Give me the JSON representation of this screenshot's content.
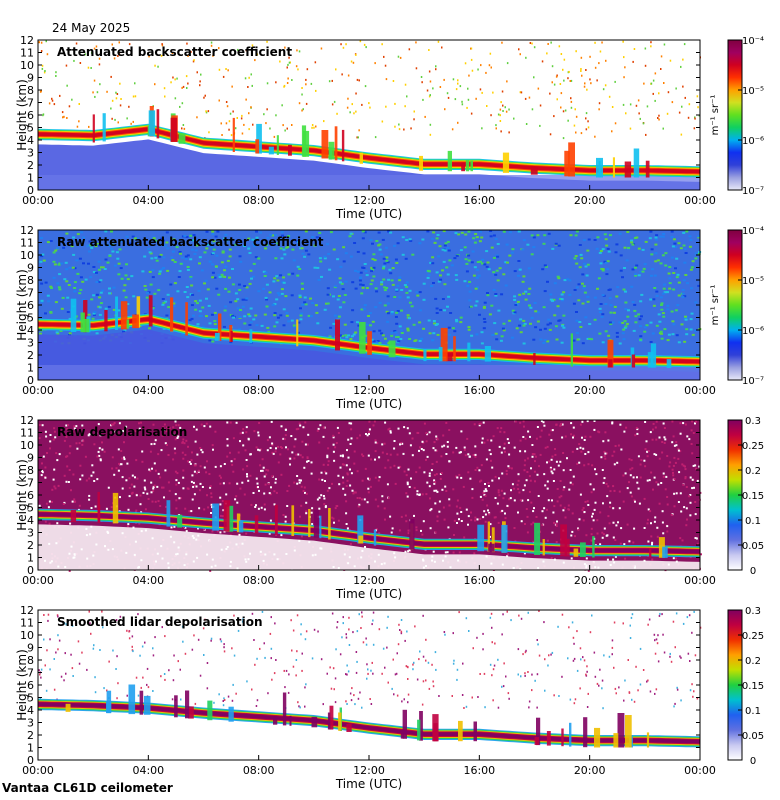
{
  "date_label": "24 May 2025",
  "footer": "Vantaa CL61D ceilometer",
  "colors": {
    "backscatter_scale": [
      "#e8e8f8",
      "#9aa0e0",
      "#3040d8",
      "#1030f0",
      "#00b0f0",
      "#10d060",
      "#60e020",
      "#d0e020",
      "#ffa000",
      "#ff3000",
      "#d00020",
      "#a00060",
      "#800040"
    ],
    "depol_scale": [
      "#ffffff",
      "#c8c8f0",
      "#6070e0",
      "#2060f0",
      "#00c0d0",
      "#20d040",
      "#c0e000",
      "#ffa000",
      "#f03000",
      "#c00040",
      "#800060"
    ]
  },
  "chart_data": [
    {
      "type": "heatmap",
      "title": "Attenuated backscatter coefficient",
      "xlabel": "Time (UTC)",
      "ylabel": "Height (km)",
      "x_ticks": [
        "00:00",
        "04:00",
        "08:00",
        "12:00",
        "16:00",
        "20:00",
        "00:00"
      ],
      "y_ticks": [
        "0",
        "1",
        "2",
        "3",
        "4",
        "5",
        "6",
        "7",
        "8",
        "9",
        "10",
        "11",
        "12"
      ],
      "xlim": [
        0,
        24
      ],
      "ylim": [
        0,
        12
      ],
      "colorbar": {
        "label": "m⁻¹ sr⁻¹",
        "scale": "log",
        "ticks": [
          "10⁻⁷",
          "10⁻⁶",
          "10⁻⁵",
          "10⁻⁴"
        ]
      },
      "layer_height_km": [
        [
          0,
          3.9
        ],
        [
          2,
          3.8
        ],
        [
          4,
          4.3
        ],
        [
          6,
          3.2
        ],
        [
          8,
          2.9
        ],
        [
          10,
          2.6
        ],
        [
          12,
          2.0
        ],
        [
          14,
          1.5
        ],
        [
          16,
          1.5
        ],
        [
          18,
          1.2
        ],
        [
          20,
          1.0
        ],
        [
          22,
          1.0
        ],
        [
          24,
          0.9
        ]
      ]
    },
    {
      "type": "heatmap",
      "title": "Raw attenuated backscatter coefficient",
      "xlabel": "Time (UTC)",
      "ylabel": "Height (km)",
      "x_ticks": [
        "00:00",
        "04:00",
        "08:00",
        "12:00",
        "16:00",
        "20:00",
        "00:00"
      ],
      "y_ticks": [
        "0",
        "1",
        "2",
        "3",
        "4",
        "5",
        "6",
        "7",
        "8",
        "9",
        "10",
        "11",
        "12"
      ],
      "xlim": [
        0,
        24
      ],
      "ylim": [
        0,
        12
      ],
      "colorbar": {
        "label": "m⁻¹ sr⁻¹",
        "scale": "log",
        "ticks": [
          "10⁻⁷",
          "10⁻⁶",
          "10⁻⁵",
          "10⁻⁴"
        ]
      },
      "layer_height_km": [
        [
          0,
          3.9
        ],
        [
          2,
          3.8
        ],
        [
          4,
          4.3
        ],
        [
          6,
          3.2
        ],
        [
          8,
          2.9
        ],
        [
          10,
          2.6
        ],
        [
          12,
          2.0
        ],
        [
          14,
          1.5
        ],
        [
          16,
          1.5
        ],
        [
          18,
          1.2
        ],
        [
          20,
          1.0
        ],
        [
          22,
          1.0
        ],
        [
          24,
          0.9
        ]
      ]
    },
    {
      "type": "heatmap",
      "title": "Raw depolarisation",
      "xlabel": "Time (UTC)",
      "ylabel": "Height (km)",
      "x_ticks": [
        "00:00",
        "04:00",
        "08:00",
        "12:00",
        "16:00",
        "20:00",
        "00:00"
      ],
      "y_ticks": [
        "0",
        "1",
        "2",
        "3",
        "4",
        "5",
        "6",
        "7",
        "8",
        "9",
        "10",
        "11",
        "12"
      ],
      "xlim": [
        0,
        24
      ],
      "ylim": [
        0,
        12
      ],
      "colorbar": {
        "label": "",
        "scale": "linear",
        "ticks": [
          "0",
          "0.05",
          "0.1",
          "0.15",
          "0.2",
          "0.25",
          "0.3"
        ]
      },
      "layer_height_km": [
        [
          0,
          3.9
        ],
        [
          2,
          3.8
        ],
        [
          4,
          3.6
        ],
        [
          6,
          3.2
        ],
        [
          8,
          2.9
        ],
        [
          10,
          2.6
        ],
        [
          12,
          2.0
        ],
        [
          14,
          1.5
        ],
        [
          16,
          1.5
        ],
        [
          18,
          1.2
        ],
        [
          20,
          1.0
        ],
        [
          22,
          1.0
        ],
        [
          24,
          0.9
        ]
      ]
    },
    {
      "type": "heatmap",
      "title": "Smoothed lidar depolarisation",
      "xlabel": "Time (UTC)",
      "ylabel": "Height (km)",
      "x_ticks": [
        "00:00",
        "04:00",
        "08:00",
        "12:00",
        "16:00",
        "20:00",
        "00:00"
      ],
      "y_ticks": [
        "0",
        "1",
        "2",
        "3",
        "4",
        "5",
        "6",
        "7",
        "8",
        "9",
        "10",
        "11",
        "12"
      ],
      "xlim": [
        0,
        24
      ],
      "ylim": [
        0,
        12
      ],
      "colorbar": {
        "label": "",
        "scale": "linear",
        "ticks": [
          "0",
          "0.05",
          "0.1",
          "0.15",
          "0.2",
          "0.25",
          "0.3"
        ]
      },
      "layer_height_km": [
        [
          0,
          3.9
        ],
        [
          2,
          3.8
        ],
        [
          4,
          3.6
        ],
        [
          6,
          3.2
        ],
        [
          8,
          2.9
        ],
        [
          10,
          2.6
        ],
        [
          12,
          2.0
        ],
        [
          14,
          1.5
        ],
        [
          16,
          1.5
        ],
        [
          18,
          1.2
        ],
        [
          20,
          1.0
        ],
        [
          22,
          1.0
        ],
        [
          24,
          0.9
        ]
      ]
    }
  ]
}
